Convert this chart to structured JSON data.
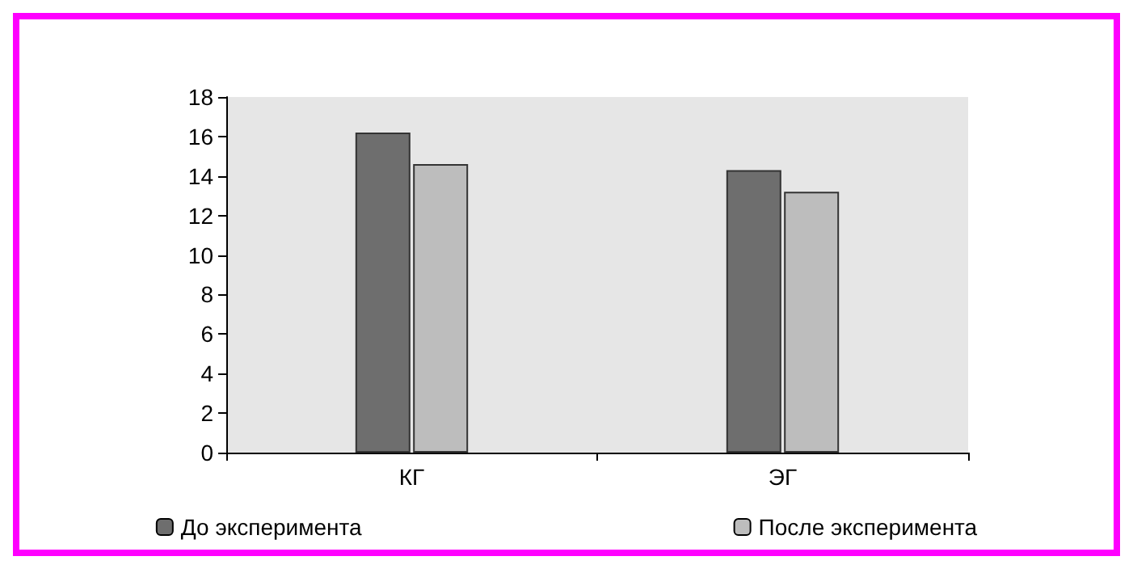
{
  "chart_data": {
    "type": "bar",
    "categories": [
      "КГ",
      "ЭГ"
    ],
    "series": [
      {
        "name": "До эксперимента",
        "color": "#6e6e6e",
        "values": [
          16.2,
          14.3
        ]
      },
      {
        "name": "После эксперимента",
        "color": "#bdbdbd",
        "values": [
          14.6,
          13.2
        ]
      }
    ],
    "ylim": [
      0,
      18
    ],
    "yticks": [
      0,
      2,
      4,
      6,
      8,
      10,
      12,
      14,
      16,
      18
    ],
    "grid": false,
    "legend": "bottom"
  }
}
